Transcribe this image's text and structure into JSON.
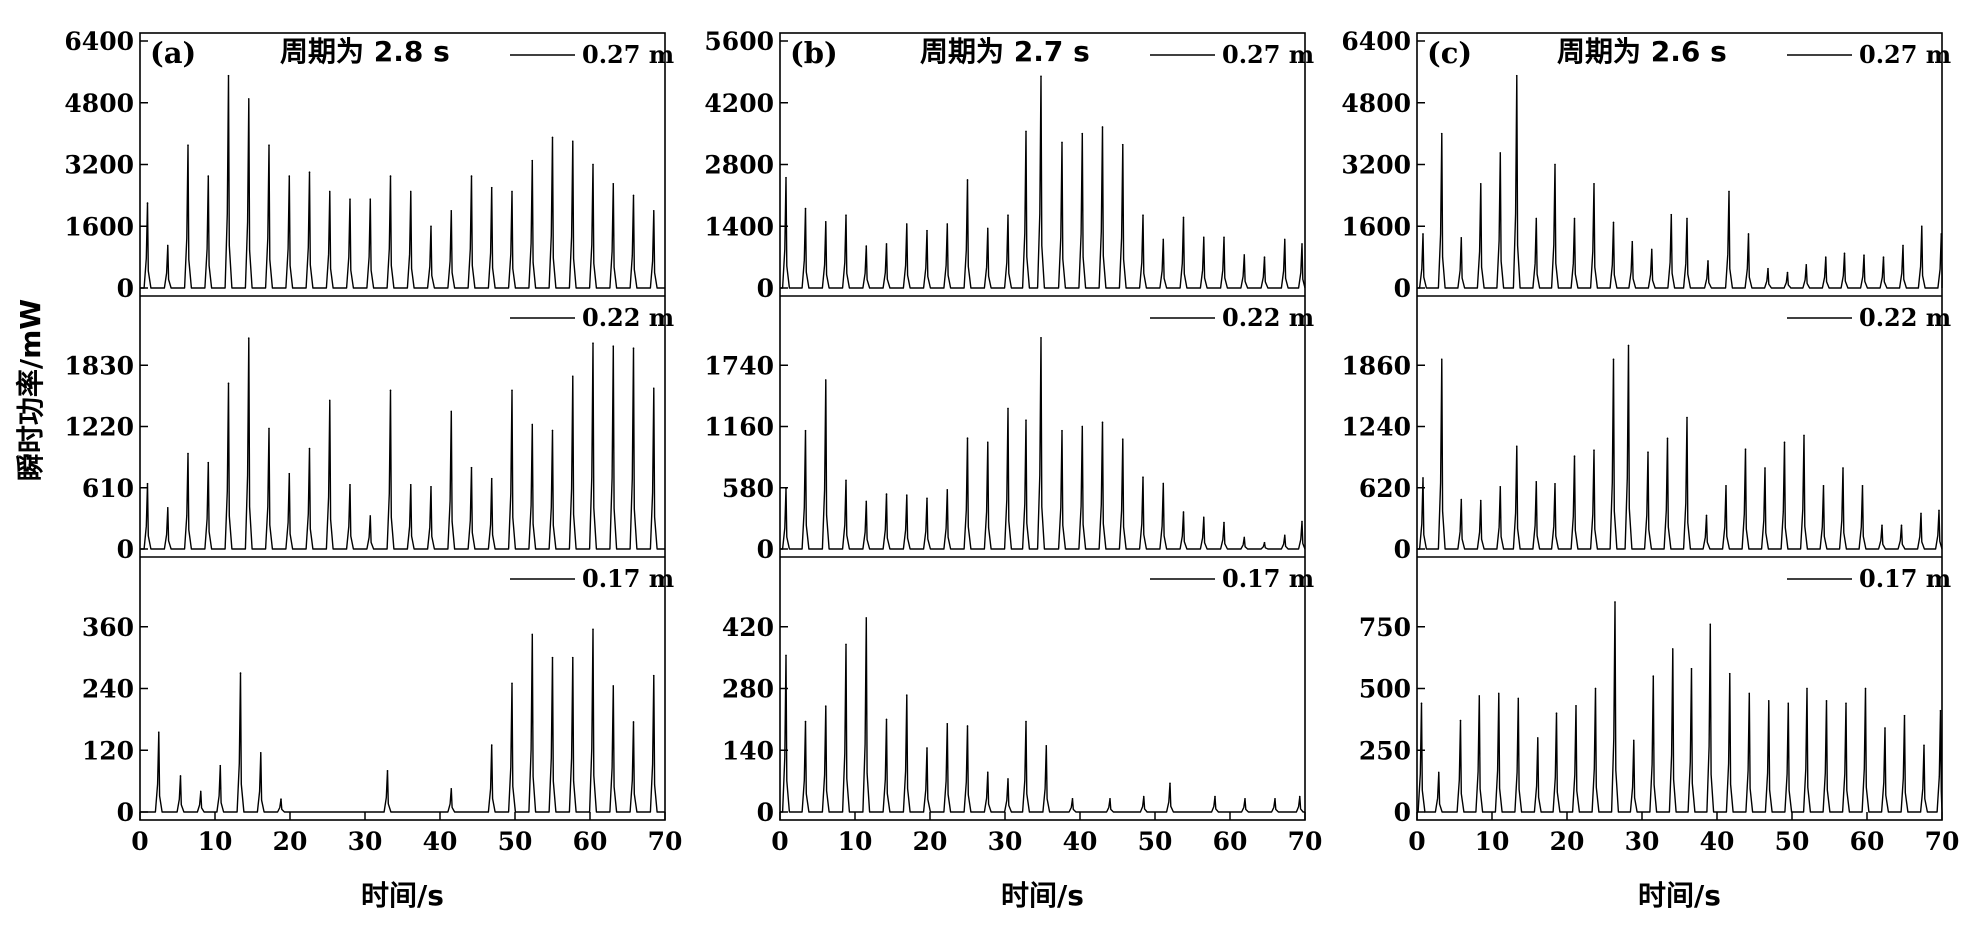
{
  "figure": {
    "ylabel": "瞬时功率/mW",
    "xlabel": "时间/s"
  },
  "chart_data": [
    {
      "type": "line",
      "panel": "(a)",
      "period_label": "周期为 2.8 s",
      "xlabel": "时间/s",
      "xlim": [
        0,
        70
      ],
      "xticks": [
        0,
        10,
        20,
        30,
        40,
        50,
        60,
        70
      ],
      "xticklabels": [
        "0",
        "10",
        "20",
        "30",
        "40",
        "50",
        "60",
        "70"
      ],
      "subplots": [
        {
          "legend": "0.27 m",
          "ylim": [
            0,
            6400
          ],
          "yticks": [
            0,
            1600,
            3200,
            4800,
            6400
          ],
          "peak_times": [
            1.0,
            3.7,
            6.4,
            9.1,
            11.8,
            14.5,
            17.2,
            19.9,
            22.6,
            25.3,
            28.0,
            30.7,
            33.4,
            36.1,
            38.8,
            41.5,
            44.2,
            46.9,
            49.6,
            52.3,
            55.0,
            57.7,
            60.4,
            63.1,
            65.8,
            68.5
          ],
          "peak_values": [
            2200,
            1100,
            3700,
            2900,
            5500,
            4900,
            3700,
            2900,
            3000,
            2500,
            2300,
            2300,
            2900,
            2500,
            1600,
            2000,
            2900,
            2600,
            2500,
            3300,
            3900,
            3800,
            3200,
            2700,
            2400,
            2000
          ]
        },
        {
          "legend": "0.22 m",
          "ylim": [
            0,
            2440
          ],
          "yticks": [
            0,
            610,
            1220,
            1830
          ],
          "peak_times": [
            1.0,
            3.7,
            6.4,
            9.1,
            11.8,
            14.5,
            17.2,
            19.9,
            22.6,
            25.3,
            28.0,
            30.7,
            33.4,
            36.1,
            38.8,
            41.5,
            44.2,
            46.9,
            49.6,
            52.3,
            55.0,
            57.7,
            60.4,
            63.1,
            65.8,
            68.5
          ],
          "peak_values": [
            650,
            410,
            950,
            860,
            1650,
            2100,
            1200,
            750,
            1000,
            1480,
            640,
            330,
            1580,
            640,
            620,
            1370,
            810,
            700,
            1580,
            1240,
            1180,
            1720,
            2050,
            2020,
            2000,
            1600
          ]
        },
        {
          "legend": "0.17 m",
          "ylim": [
            0,
            480
          ],
          "yticks": [
            0,
            120,
            240,
            360
          ],
          "peak_times": [
            2.5,
            5.4,
            8.1,
            10.7,
            13.4,
            16.1,
            18.8,
            33.0,
            41.5,
            46.9,
            49.6,
            52.3,
            55.0,
            57.7,
            60.4,
            63.1,
            65.8,
            68.5
          ],
          "peak_values": [
            155,
            70,
            40,
            90,
            270,
            115,
            25,
            80,
            45,
            130,
            250,
            345,
            300,
            300,
            355,
            245,
            175,
            265
          ]
        }
      ]
    },
    {
      "type": "line",
      "panel": "(b)",
      "period_label": "周期为 2.7 s",
      "xlabel": "时间/s",
      "xlim": [
        0,
        70
      ],
      "xticks": [
        0,
        10,
        20,
        30,
        40,
        50,
        60,
        70
      ],
      "xticklabels": [
        "0",
        "10",
        "20",
        "30",
        "40",
        "50",
        "60",
        "70"
      ],
      "subplots": [
        {
          "legend": "0.27 m",
          "ylim": [
            0,
            5600
          ],
          "yticks": [
            0,
            1400,
            2800,
            4200,
            5600
          ],
          "peak_times": [
            0.8,
            3.4,
            6.1,
            8.8,
            11.5,
            14.2,
            16.9,
            19.6,
            22.3,
            25.0,
            27.7,
            30.4,
            32.8,
            34.8,
            37.6,
            40.3,
            43.0,
            45.7,
            48.4,
            51.1,
            53.8,
            56.5,
            59.2,
            61.9,
            64.6,
            67.3,
            69.6
          ],
          "peak_values": [
            2500,
            1800,
            1500,
            1650,
            950,
            1000,
            1450,
            1300,
            1450,
            2450,
            1350,
            1650,
            3550,
            4800,
            3300,
            3500,
            3650,
            3250,
            1650,
            1100,
            1600,
            1150,
            1150,
            750,
            700,
            1100,
            1000
          ]
        },
        {
          "legend": "0.22 m",
          "ylim": [
            0,
            2320
          ],
          "yticks": [
            0,
            580,
            1160,
            1740
          ],
          "peak_times": [
            0.8,
            3.4,
            6.1,
            8.8,
            11.5,
            14.2,
            16.9,
            19.6,
            22.3,
            25.0,
            27.7,
            30.4,
            32.8,
            34.8,
            37.6,
            40.3,
            43.0,
            45.7,
            48.4,
            51.1,
            53.8,
            56.5,
            59.2,
            61.9,
            64.6,
            67.3,
            69.6
          ],
          "peak_values": [
            570,
            1120,
            1600,
            650,
            450,
            520,
            510,
            480,
            560,
            1050,
            1010,
            1330,
            1220,
            2000,
            1120,
            1160,
            1200,
            1040,
            680,
            620,
            350,
            300,
            250,
            110,
            60,
            130,
            260
          ]
        },
        {
          "legend": "0.17 m",
          "ylim": [
            0,
            560
          ],
          "yticks": [
            0,
            140,
            280,
            420
          ],
          "peak_times": [
            0.8,
            3.4,
            6.1,
            8.8,
            11.5,
            14.2,
            16.9,
            19.6,
            22.3,
            25.0,
            27.7,
            30.4,
            32.8,
            35.5,
            39.0,
            44.0,
            48.5,
            52.0,
            58.0,
            62.0,
            66.0,
            69.3
          ],
          "peak_values": [
            355,
            205,
            240,
            380,
            440,
            210,
            265,
            145,
            200,
            195,
            90,
            75,
            205,
            150,
            30,
            30,
            35,
            65,
            35,
            30,
            30,
            35
          ]
        }
      ]
    },
    {
      "type": "line",
      "panel": "(c)",
      "period_label": "周期为 2.6 s",
      "xlabel": "时间/s",
      "xlim": [
        0,
        70
      ],
      "xticks": [
        0,
        10,
        20,
        30,
        40,
        50,
        60,
        70
      ],
      "xticklabels": [
        "0",
        "10",
        "20",
        "30",
        "40",
        "50",
        "60",
        "70"
      ],
      "subplots": [
        {
          "legend": "0.27 m",
          "ylim": [
            0,
            6400
          ],
          "yticks": [
            0,
            1600,
            3200,
            4800,
            6400
          ],
          "peak_times": [
            0.8,
            3.3,
            5.9,
            8.5,
            11.1,
            13.3,
            15.9,
            18.4,
            21.0,
            23.6,
            26.2,
            28.7,
            31.3,
            33.9,
            36.0,
            38.8,
            41.6,
            44.2,
            46.8,
            49.4,
            51.9,
            54.5,
            57.0,
            59.6,
            62.2,
            64.8,
            67.3,
            69.9
          ],
          "peak_values": [
            1400,
            4000,
            1300,
            2700,
            3500,
            5500,
            1800,
            3200,
            1800,
            2700,
            1700,
            1200,
            1000,
            1900,
            1800,
            700,
            2500,
            1400,
            500,
            400,
            600,
            800,
            900,
            850,
            800,
            1100,
            1600,
            1400
          ]
        },
        {
          "legend": "0.22 m",
          "ylim": [
            0,
            2480
          ],
          "yticks": [
            0,
            620,
            1240,
            1860
          ],
          "peak_times": [
            0.8,
            3.3,
            5.9,
            8.5,
            11.1,
            13.3,
            15.9,
            18.4,
            21.0,
            23.6,
            26.2,
            28.2,
            30.8,
            33.4,
            36.0,
            38.6,
            41.2,
            43.8,
            46.4,
            49.0,
            51.6,
            54.2,
            56.8,
            59.4,
            62.0,
            64.6,
            67.2,
            69.6
          ],
          "peak_values": [
            720,
            1920,
            500,
            490,
            630,
            1040,
            680,
            660,
            940,
            1000,
            1920,
            2060,
            980,
            1120,
            1330,
            340,
            640,
            1010,
            820,
            1080,
            1150,
            640,
            820,
            640,
            240,
            240,
            360,
            390
          ]
        },
        {
          "legend": "0.17 m",
          "ylim": [
            0,
            1000
          ],
          "yticks": [
            0,
            250,
            500,
            750
          ],
          "peak_times": [
            0.6,
            2.9,
            5.8,
            8.3,
            10.9,
            13.5,
            16.1,
            18.6,
            21.2,
            23.8,
            26.4,
            28.9,
            31.5,
            34.1,
            36.6,
            39.1,
            41.7,
            44.3,
            46.9,
            49.5,
            52.0,
            54.6,
            57.2,
            59.8,
            62.4,
            65.0,
            67.6,
            69.8
          ],
          "peak_values": [
            440,
            160,
            370,
            470,
            480,
            460,
            300,
            400,
            430,
            500,
            850,
            290,
            550,
            660,
            580,
            760,
            560,
            480,
            450,
            440,
            500,
            450,
            440,
            500,
            340,
            390,
            270,
            410
          ]
        }
      ]
    }
  ]
}
